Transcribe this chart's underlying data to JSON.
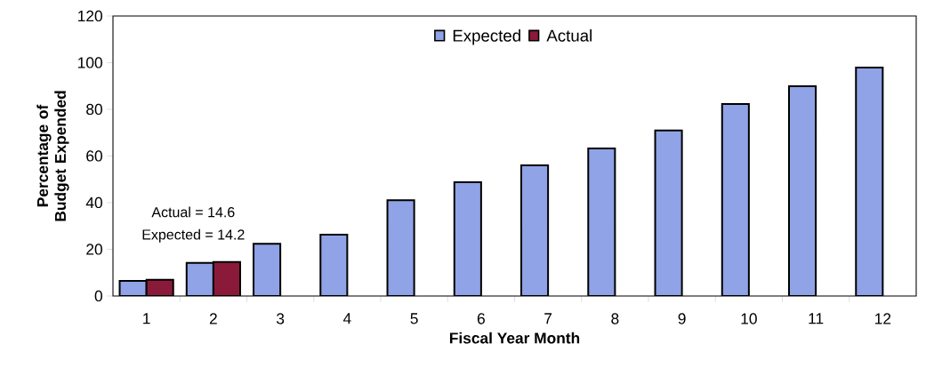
{
  "chart_data": {
    "type": "bar",
    "xlabel": "Fiscal Year Month",
    "ylabel": "Percentage of Budget Expended",
    "categories": [
      "1",
      "2",
      "3",
      "4",
      "5",
      "6",
      "7",
      "8",
      "9",
      "10",
      "11",
      "12"
    ],
    "series": [
      {
        "name": "Expected",
        "color": "#8fa3e6",
        "values": [
          6.5,
          14.2,
          22.4,
          26.3,
          41,
          48.8,
          56,
          63.2,
          70.9,
          82.3,
          89.9,
          97.9
        ]
      },
      {
        "name": "Actual",
        "color": "#8b1a3a",
        "values": [
          6.9,
          14.6,
          null,
          null,
          null,
          null,
          null,
          null,
          null,
          null,
          null,
          null
        ]
      }
    ],
    "ylim": [
      0,
      120
    ],
    "yticks": [
      0,
      20,
      40,
      60,
      80,
      100,
      120
    ],
    "annotations": [
      "Actual = 14.6",
      "Expected = 14.2"
    ],
    "legend": "top",
    "grid": false
  }
}
